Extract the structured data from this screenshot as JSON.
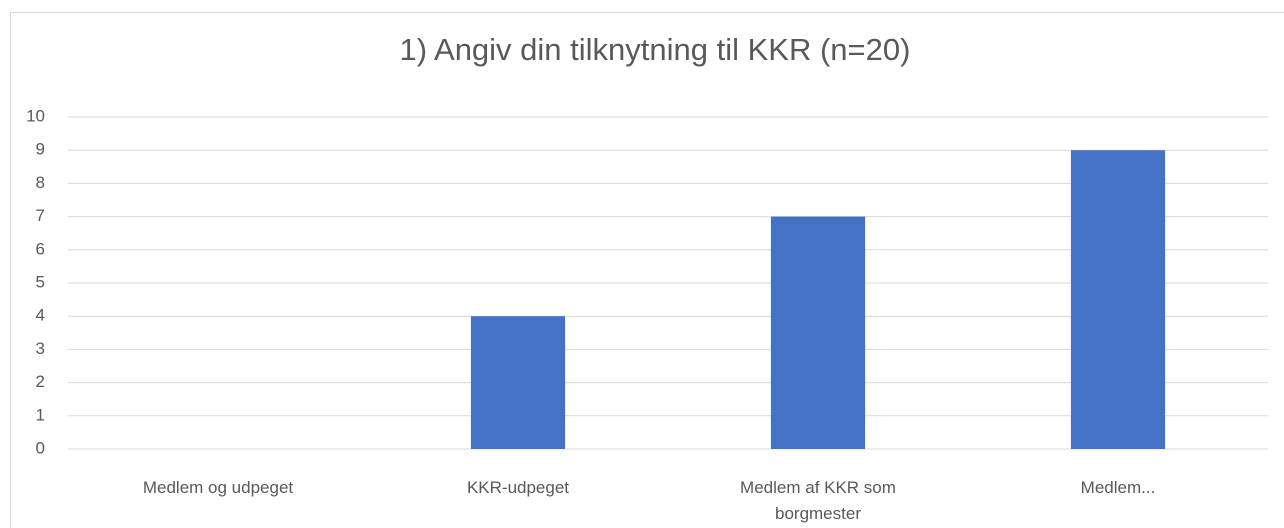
{
  "chart_data": {
    "type": "bar",
    "title": "1) Angiv din tilknytning til KKR (n=20)",
    "categories": [
      "Medlem og udpeget",
      "KKR-udpeget",
      "Medlem af KKR som borgmester",
      "Medlem..."
    ],
    "values": [
      0,
      4,
      7,
      9
    ],
    "color": "#4472c4",
    "ylim": [
      0,
      10
    ],
    "yticks": [
      0,
      1,
      2,
      3,
      4,
      5,
      6,
      7,
      8,
      9,
      10
    ],
    "grid": true
  }
}
